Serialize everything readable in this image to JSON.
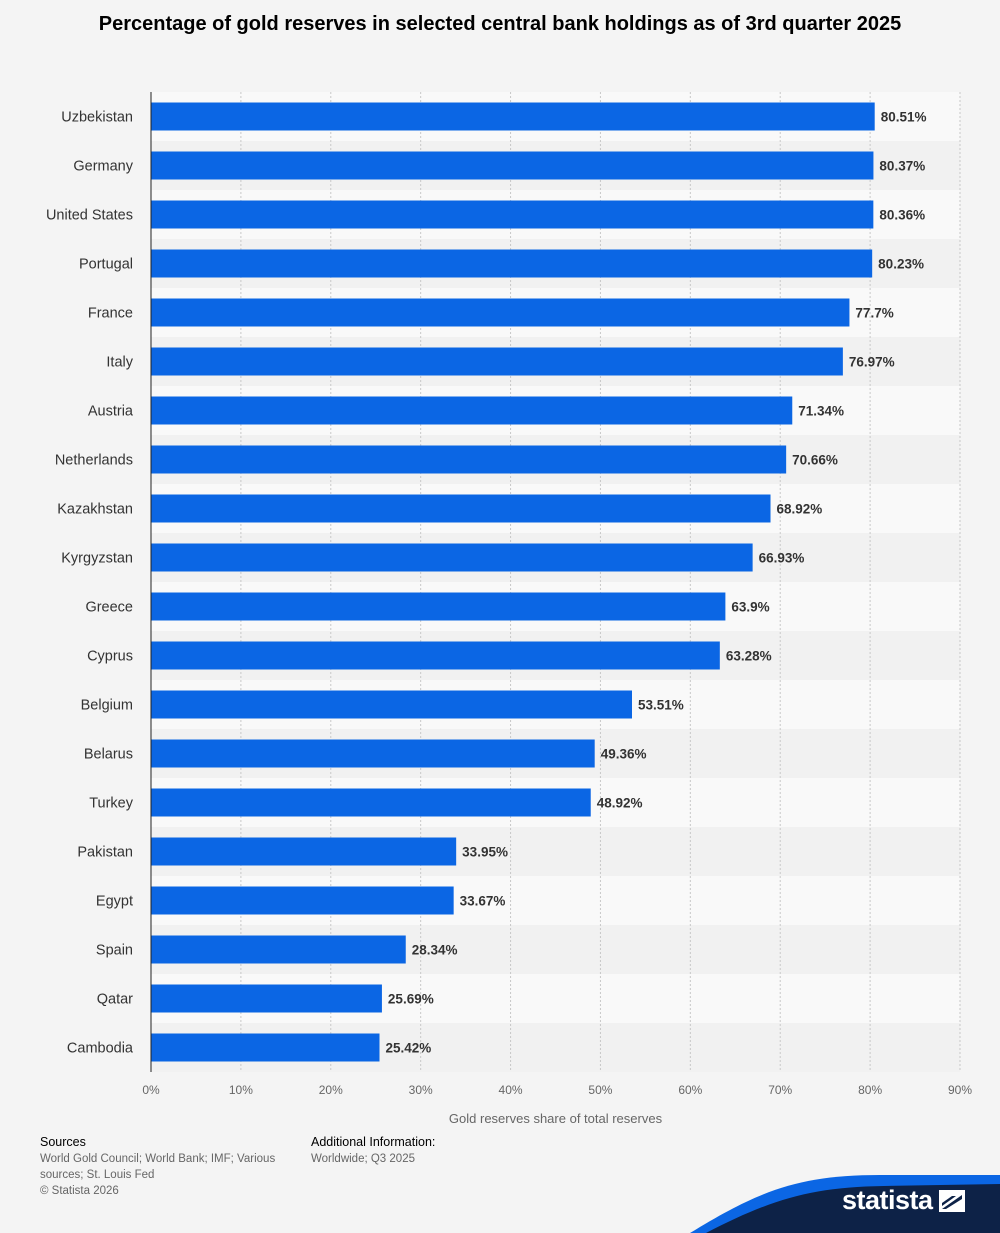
{
  "chart_data": {
    "type": "bar",
    "orientation": "horizontal",
    "title": "Percentage of gold reserves in selected central bank holdings as of 3rd quarter 2025",
    "xlabel": "Gold reserves share of total reserves",
    "ylabel": "",
    "xlim": [
      0,
      90
    ],
    "xticks": [
      0,
      10,
      20,
      30,
      40,
      50,
      60,
      70,
      80,
      90
    ],
    "tick_suffix": "%",
    "grid": true,
    "bar_color": "#0b66e4",
    "categories": [
      "Uzbekistan",
      "Germany",
      "United States",
      "Portugal",
      "France",
      "Italy",
      "Austria",
      "Netherlands",
      "Kazakhstan",
      "Kyrgyzstan",
      "Greece",
      "Cyprus",
      "Belgium",
      "Belarus",
      "Turkey",
      "Pakistan",
      "Egypt",
      "Spain",
      "Qatar",
      "Cambodia"
    ],
    "values": [
      80.51,
      80.37,
      80.36,
      80.23,
      77.7,
      76.97,
      71.34,
      70.66,
      68.92,
      66.93,
      63.9,
      63.28,
      53.51,
      49.36,
      48.92,
      33.95,
      33.67,
      28.34,
      25.69,
      25.42
    ],
    "value_labels": [
      "80.51%",
      "80.37%",
      "80.36%",
      "80.23%",
      "77.7%",
      "76.97%",
      "71.34%",
      "70.66%",
      "68.92%",
      "66.93%",
      "63.9%",
      "63.28%",
      "53.51%",
      "49.36%",
      "48.92%",
      "33.95%",
      "33.67%",
      "28.34%",
      "25.69%",
      "25.42%"
    ]
  },
  "footer": {
    "sources_heading": "Sources",
    "sources_text": "World Gold Council; World Bank; IMF; Various sources; St. Louis Fed",
    "copyright": "© Statista 2026",
    "additional_heading": "Additional Information:",
    "additional_text": "Worldwide; Q3 2025",
    "brand": "statista",
    "brand_color": "#0b66e4",
    "brand_dark": "#0d2247"
  }
}
